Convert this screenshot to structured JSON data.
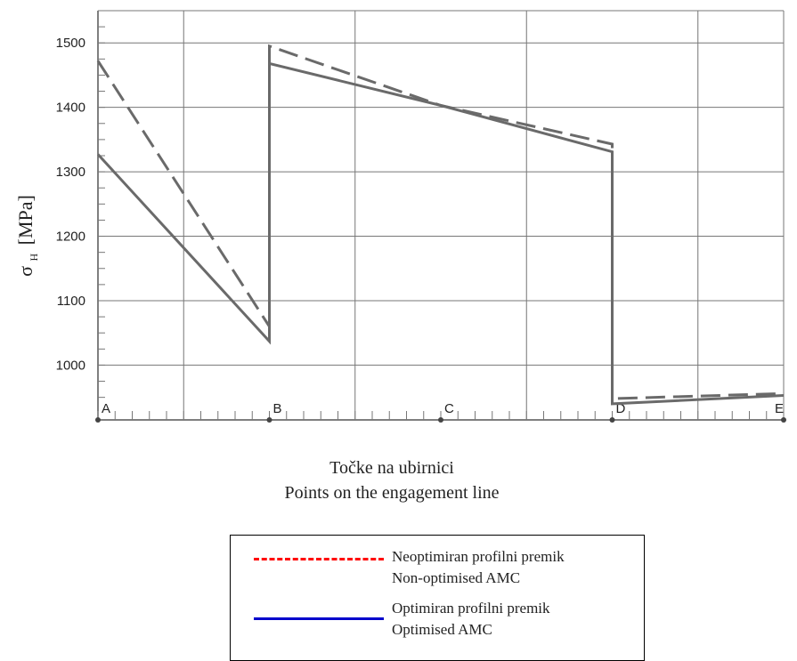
{
  "chart_data": {
    "type": "line",
    "ylabel_main": "σ",
    "ylabel_sub": "H",
    "ylabel_unit": "[MPa]",
    "xlabel_lines": [
      "Točke na ubirnici",
      "Points on the engagement line"
    ],
    "categories": [
      "A",
      "B",
      "C",
      "D",
      "E"
    ],
    "y_ticks": [
      1000,
      1100,
      1200,
      1300,
      1400,
      1500
    ],
    "ylim": [
      915,
      1550
    ],
    "xlim": [
      0,
      4
    ],
    "grid": true,
    "legend_position": "bottom-center",
    "series": [
      {
        "name": "Neoptimiran profilni premik",
        "name_en": "Non-optimised AMC",
        "style": "dashed",
        "legend_color": "#ff0000",
        "points": [
          [
            0,
            1472
          ],
          [
            1,
            1060
          ],
          [
            1,
            1495
          ],
          [
            2,
            1403
          ],
          [
            3,
            1343
          ],
          [
            3,
            948
          ],
          [
            4,
            956
          ]
        ]
      },
      {
        "name": "Optimiran profilni premik",
        "name_en": "Optimised AMC",
        "style": "solid",
        "legend_color": "#0000cc",
        "points": [
          [
            0,
            1327
          ],
          [
            1,
            1037
          ],
          [
            1,
            1468
          ],
          [
            2,
            1403
          ],
          [
            3,
            1331
          ],
          [
            3,
            940
          ],
          [
            4,
            953
          ]
        ]
      }
    ]
  }
}
